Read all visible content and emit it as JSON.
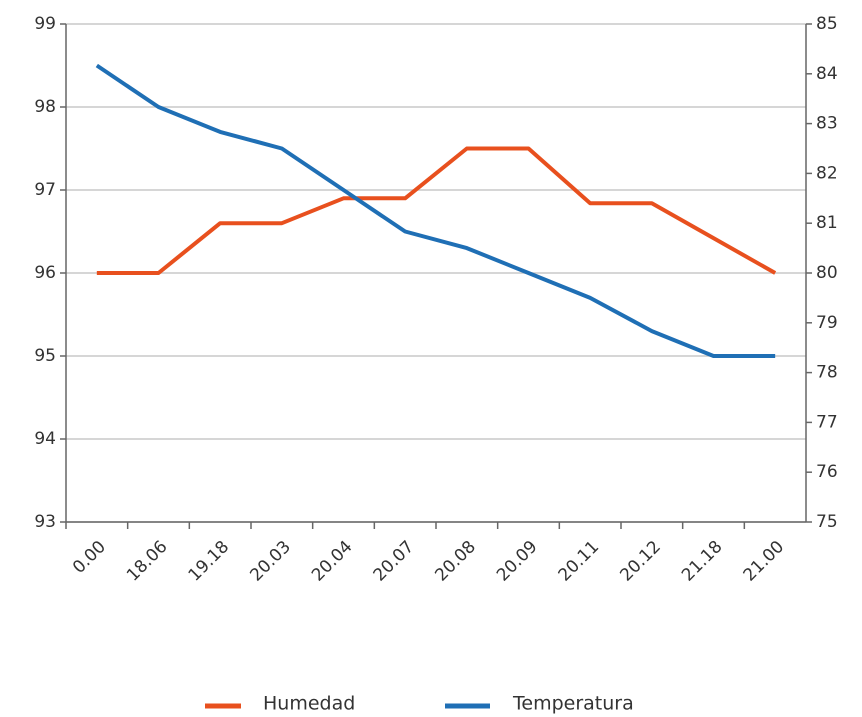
{
  "chart_data": {
    "type": "line",
    "categories": [
      "0.00",
      "18.06",
      "19.18",
      "20.03",
      "20.04",
      "20.07",
      "20.08",
      "20.09",
      "20.11",
      "20.12",
      "21.18",
      "21.00"
    ],
    "series": [
      {
        "name": "Humedad",
        "color": "#e8501e",
        "axis": "y2",
        "values": [
          80,
          80,
          81,
          81,
          81.5,
          81.5,
          82.5,
          82.5,
          81.4,
          81.4,
          80.7,
          80
        ]
      },
      {
        "name": "Temperatura",
        "color": "#1f6fb5",
        "values": [
          98.5,
          98,
          97.7,
          97.5,
          97.0,
          96.5,
          96.3,
          96.0,
          95.7,
          95.3,
          95.0,
          95.0
        ]
      }
    ],
    "ylim": [
      93,
      99
    ],
    "yticks": [
      93,
      94,
      95,
      96,
      97,
      98,
      99
    ],
    "y2lim": [
      75,
      85
    ],
    "y2ticks": [
      75,
      76,
      77,
      78,
      79,
      80,
      81,
      82,
      83,
      84,
      85
    ],
    "grid": true,
    "legend": "bottom"
  }
}
